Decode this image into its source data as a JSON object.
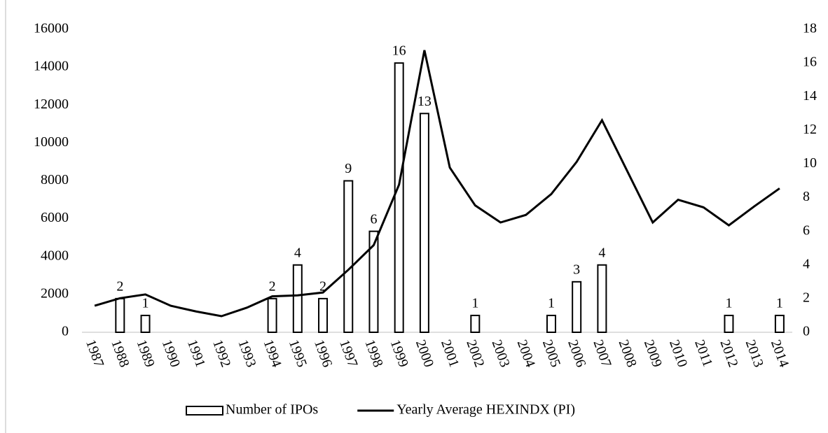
{
  "chart_data": {
    "type": "bar",
    "categories": [
      "1987",
      "1988",
      "1989",
      "1990",
      "1991",
      "1992",
      "1993",
      "1994",
      "1995",
      "1996",
      "1997",
      "1998",
      "1999",
      "2000",
      "2001",
      "2002",
      "2003",
      "2004",
      "2005",
      "2006",
      "2007",
      "2008",
      "2009",
      "2010",
      "2011",
      "2012",
      "2013",
      "2014"
    ],
    "series": [
      {
        "name": "Number of IPOs",
        "type": "bar",
        "axis": "y2",
        "color": "#ffffff",
        "values": [
          null,
          2,
          1,
          null,
          null,
          null,
          null,
          2,
          4,
          2,
          9,
          6,
          16,
          13,
          null,
          1,
          null,
          null,
          1,
          3,
          4,
          null,
          null,
          null,
          null,
          1,
          null,
          1
        ]
      },
      {
        "name": "Yearly Average HEXINDX (PI)",
        "type": "line",
        "color": "#000000",
        "values": [
          1400,
          1800,
          2000,
          1400,
          1100,
          850,
          1300,
          1900,
          1950,
          2100,
          3300,
          4600,
          7800,
          14900,
          8700,
          6700,
          5800,
          6200,
          7300,
          9000,
          11200,
          8500,
          5800,
          7000,
          6600,
          5650,
          6650,
          7600
        ]
      }
    ],
    "ylim": [
      0,
      16000
    ],
    "yticks": [
      0,
      2000,
      4000,
      6000,
      8000,
      10000,
      12000,
      14000,
      16000
    ],
    "y2lim": [
      0,
      18
    ],
    "y2ticks": [
      0,
      2,
      4,
      6,
      8,
      10,
      12,
      14,
      16,
      18
    ],
    "legend": "bottom"
  }
}
